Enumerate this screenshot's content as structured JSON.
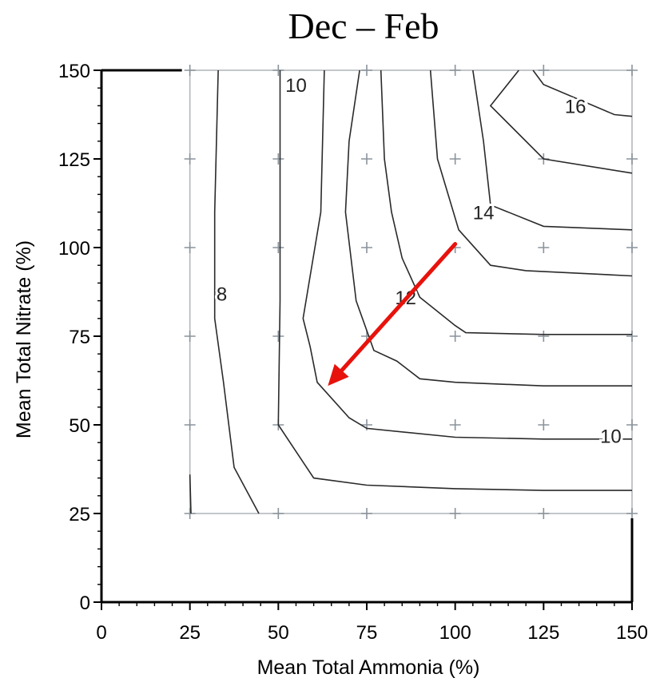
{
  "chart_data": {
    "type": "contour",
    "title": "Dec – Feb",
    "xlabel": "Mean Total Ammonia (%)",
    "ylabel": "Mean Total Nitrate (%)",
    "xlim": [
      0,
      150
    ],
    "ylim": [
      0,
      150
    ],
    "xticks": [
      "0",
      "25",
      "50",
      "75",
      "100",
      "125",
      "150"
    ],
    "yticks": [
      "0",
      "25",
      "50",
      "75",
      "100",
      "125",
      "150"
    ],
    "grid_points": {
      "x": [
        25,
        50,
        75,
        100,
        125,
        150
      ],
      "y": [
        25,
        50,
        75,
        100,
        125,
        150
      ]
    },
    "contours": [
      {
        "label": "8",
        "points": [
          [
            25,
            36
          ],
          [
            25.3,
            25
          ]
        ]
      },
      {
        "label": "8",
        "points": [
          [
            33,
            150
          ],
          [
            32,
            110
          ],
          [
            32,
            80
          ],
          [
            34.5,
            62
          ],
          [
            37.5,
            38
          ],
          [
            44.5,
            25
          ]
        ]
      },
      {
        "label": "10",
        "points": [
          [
            50.5,
            150
          ],
          [
            50.5,
            115
          ],
          [
            50.5,
            85
          ],
          [
            50,
            50
          ],
          [
            60,
            35
          ],
          [
            75,
            33
          ],
          [
            100,
            32
          ],
          [
            125,
            31.5
          ],
          [
            150,
            31.5
          ]
        ]
      },
      {
        "label": "",
        "points": [
          [
            63,
            150
          ],
          [
            62,
            110
          ],
          [
            57,
            80
          ],
          [
            59,
            72
          ],
          [
            61,
            62
          ],
          [
            70,
            52
          ],
          [
            75,
            49
          ],
          [
            100,
            46.5
          ],
          [
            125,
            46
          ],
          [
            150,
            46
          ]
        ]
      },
      {
        "label": "",
        "points": [
          [
            73,
            150
          ],
          [
            70,
            130
          ],
          [
            69,
            110
          ],
          [
            72,
            85
          ],
          [
            77,
            71
          ],
          [
            83.5,
            68
          ],
          [
            90,
            63
          ],
          [
            100,
            62
          ],
          [
            125,
            61
          ],
          [
            150,
            61
          ]
        ]
      },
      {
        "label": "12",
        "points": [
          [
            79,
            150
          ],
          [
            80,
            125
          ],
          [
            82,
            110
          ],
          [
            85,
            97
          ],
          [
            90,
            86
          ],
          [
            100,
            78
          ],
          [
            103,
            76
          ],
          [
            125,
            75.5
          ],
          [
            150,
            75.5
          ]
        ]
      },
      {
        "label": "",
        "points": [
          [
            93,
            150
          ],
          [
            95,
            125
          ],
          [
            98,
            115
          ],
          [
            101,
            105
          ],
          [
            110,
            95
          ],
          [
            120,
            93.5
          ],
          [
            150,
            92
          ]
        ]
      },
      {
        "label": "14",
        "points": [
          [
            105,
            150
          ],
          [
            108,
            130
          ],
          [
            110,
            112
          ],
          [
            125,
            106
          ],
          [
            150,
            105
          ]
        ]
      },
      {
        "label": "",
        "points": [
          [
            118,
            150
          ],
          [
            110,
            140
          ],
          [
            125,
            125
          ],
          [
            150,
            121
          ]
        ]
      },
      {
        "label": "16",
        "points": [
          [
            122,
            150
          ],
          [
            125,
            146
          ],
          [
            145,
            137.5
          ],
          [
            150,
            137
          ]
        ]
      }
    ],
    "contour_labels": [
      {
        "text": "8",
        "x": 34,
        "y": 87
      },
      {
        "text": "10",
        "x": 55,
        "y": 146
      },
      {
        "text": "12",
        "x": 86,
        "y": 86
      },
      {
        "text": "14",
        "x": 108,
        "y": 110
      },
      {
        "text": "16",
        "x": 134,
        "y": 140
      },
      {
        "text": "10",
        "x": 144,
        "y": 47
      }
    ],
    "annotations": [
      {
        "type": "arrow",
        "color": "#e8120c",
        "from": [
          100,
          101
        ],
        "to": [
          64,
          61
        ]
      }
    ]
  }
}
